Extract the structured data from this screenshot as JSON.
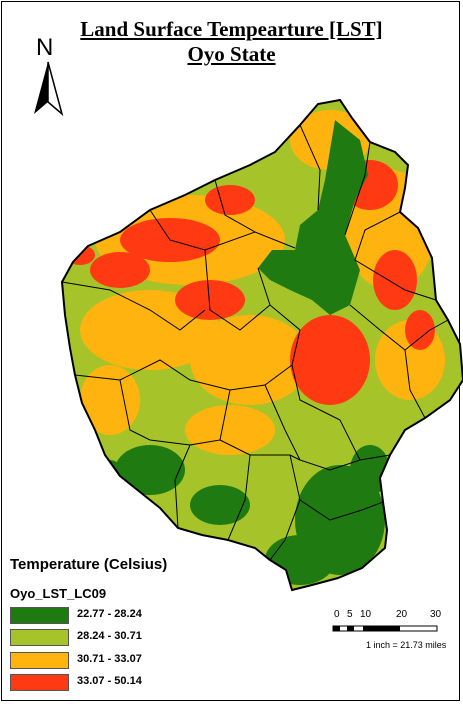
{
  "title": {
    "line1": "Land Surface Tempearture [LST]",
    "line2": "Oyo State"
  },
  "north_arrow": {
    "letter": "N",
    "icon": "north-arrow-icon"
  },
  "legend": {
    "title": "Temperature (Celsius)",
    "layer": "Oyo_LST_LC09",
    "classes": [
      {
        "label": "22.77 - 28.24",
        "color": "#1f7a12"
      },
      {
        "label": "28.24 - 30.71",
        "color": "#a6c42a"
      },
      {
        "label": "30.71 - 33.07",
        "color": "#ffb30f"
      },
      {
        "label": "33.07 - 50.14",
        "color": "#ff3a12"
      }
    ]
  },
  "scale_bar": {
    "ticks": [
      "0",
      "5",
      "10",
      "20",
      "30"
    ],
    "note": "1 inch = 21.73 miles"
  }
}
